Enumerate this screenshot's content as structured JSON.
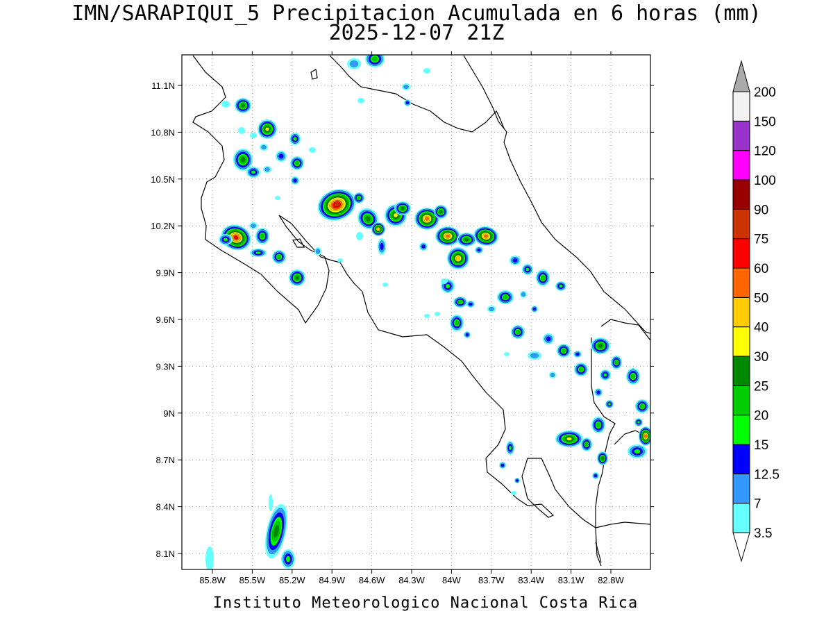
{
  "title": {
    "line1": "IMN/SARAPIQUI_5 Precipitacion Acumulada en 6 horas (mm)",
    "line2": "2025-12-07 21Z"
  },
  "footer": "Instituto Meteorologico Nacional Costa Rica",
  "map": {
    "lon_range": [
      -86.0,
      -82.6
    ],
    "lat_range": [
      8.0,
      11.3
    ],
    "grid": true,
    "x_ticks": [
      "85.8W",
      "85.5W",
      "85.2W",
      "84.9W",
      "84.6W",
      "84.3W",
      "84W",
      "83.7W",
      "83.4W",
      "83.1W",
      "82.8W"
    ],
    "y_ticks": [
      "11.1N",
      "10.8N",
      "10.5N",
      "10.2N",
      "9.9N",
      "9.6N",
      "9.3N",
      "9N",
      "8.7N",
      "8.4N",
      "8.1N"
    ]
  },
  "colorbar": {
    "levels": [
      "3.5",
      "7",
      "12.5",
      "15",
      "20",
      "25",
      "30",
      "40",
      "50",
      "60",
      "75",
      "90",
      "100",
      "120",
      "150",
      "200"
    ],
    "colors": [
      "#66ffff",
      "#3399ff",
      "#0000ff",
      "#00ff00",
      "#00cc00",
      "#008800",
      "#ffff00",
      "#ffcc00",
      "#ff6600",
      "#ff0000",
      "#cc3300",
      "#990000",
      "#ff00ff",
      "#9933cc",
      "#f2f2f2",
      "#aaaaaa"
    ]
  }
}
